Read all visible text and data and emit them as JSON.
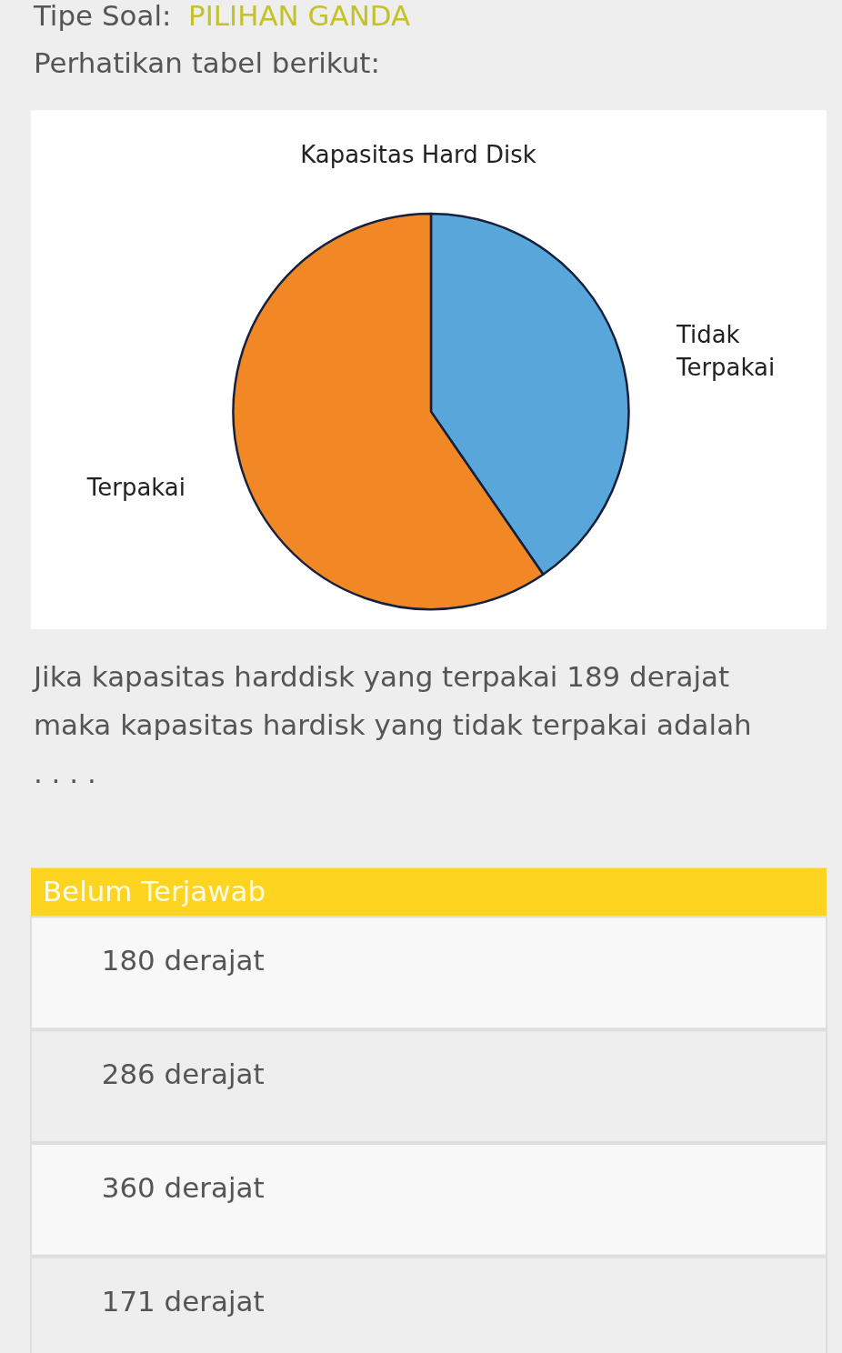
{
  "chart_data": {
    "type": "pie",
    "title": "Kapasitas Hard Disk",
    "categories": [
      "Tidak Terpakai",
      "Terpakai"
    ],
    "values": [
      40.4,
      59.6
    ],
    "colors": [
      "#58a6da",
      "#f28825"
    ],
    "annotations": [
      "Tipe Soal:",
      "PILIHAN GANDA",
      "Perhatikan tabel berikut:",
      "Jika kapasitas harddisk yang terpakai 189 derajat maka kapasitas hardisk yang tidak terpakai adalah . . . .",
      "Belum Terjawab",
      "180 derajat",
      "286 derajat",
      "360 derajat",
      "171 derajat"
    ]
  }
}
